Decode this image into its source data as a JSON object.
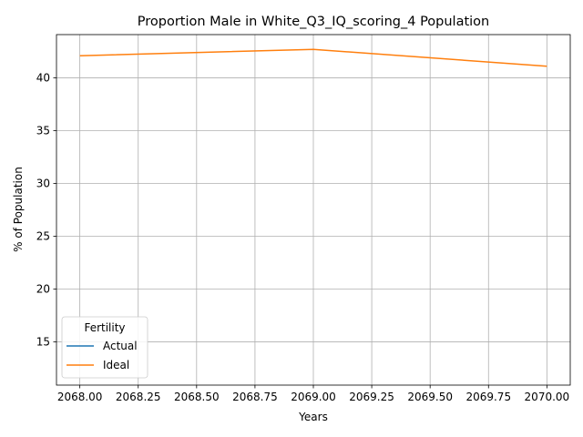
{
  "chart_data": {
    "type": "line",
    "title": "Proportion Male in White_Q3_IQ_scoring_4 Population",
    "xlabel": "Years",
    "ylabel": "% of Population",
    "x": [
      2068,
      2069,
      2070
    ],
    "xlim": [
      2067.9,
      2070.1
    ],
    "ylim": [
      10.9,
      44.1
    ],
    "xticks": [
      "2068.00",
      "2068.25",
      "2068.50",
      "2068.75",
      "2069.00",
      "2069.25",
      "2069.50",
      "2069.75",
      "2070.00"
    ],
    "xtick_values": [
      2068.0,
      2068.25,
      2068.5,
      2068.75,
      2069.0,
      2069.25,
      2069.5,
      2069.75,
      2070.0
    ],
    "yticks": [
      "15",
      "20",
      "25",
      "30",
      "35",
      "40"
    ],
    "ytick_values": [
      15,
      20,
      25,
      30,
      35,
      40
    ],
    "grid": true,
    "legend": {
      "title": "Fertility",
      "placement": "lower-left"
    },
    "series": [
      {
        "name": "Actual",
        "color": "#1f77b4",
        "values": [
          null,
          null,
          null
        ]
      },
      {
        "name": "Ideal",
        "color": "#ff7f0e",
        "values": [
          42.1,
          42.7,
          41.1
        ]
      }
    ]
  }
}
